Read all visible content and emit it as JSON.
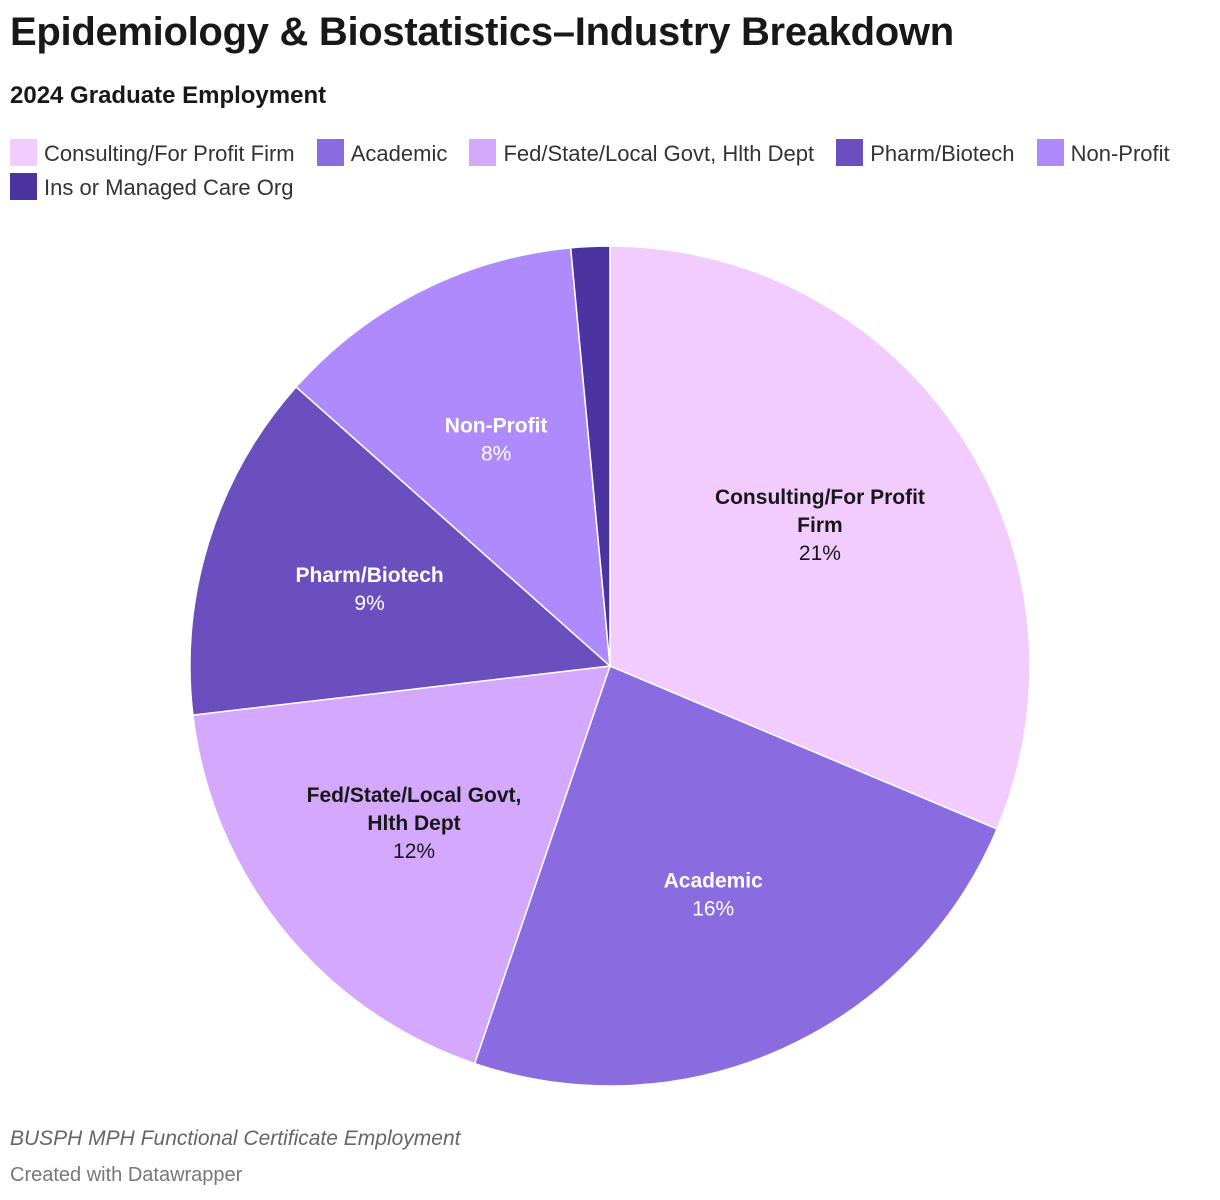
{
  "header": {
    "title": "Epidemiology & Biostatistics–Industry Breakdown",
    "subtitle": "2024 Graduate Employment"
  },
  "footer": {
    "source": "BUSPH MPH Functional Certificate Employment",
    "credit": "Created with Datawrapper"
  },
  "chart_data": {
    "type": "pie",
    "title": "Epidemiology & Biostatistics–Industry Breakdown",
    "subtitle": "2024 Graduate Employment",
    "legend_position": "top",
    "start_angle_deg": 0,
    "direction": "clockwise",
    "slices": [
      {
        "label": "Consulting/For Profit Firm",
        "value": 21,
        "value_label": "21%",
        "color": "#f2ccfe",
        "label_color": "#181818",
        "label_lines": [
          "Consulting/For Profit",
          "Firm"
        ]
      },
      {
        "label": "Academic",
        "value": 16,
        "value_label": "16%",
        "color": "#8b6be0",
        "label_color": "#ffffff",
        "label_lines": [
          "Academic"
        ]
      },
      {
        "label": "Fed/State/Local Govt, Hlth Dept",
        "value": 12,
        "value_label": "12%",
        "color": "#d3a8fd",
        "label_color": "#181818",
        "label_lines": [
          "Fed/State/Local Govt,",
          "Hlth Dept"
        ]
      },
      {
        "label": "Pharm/Biotech",
        "value": 9,
        "value_label": "9%",
        "color": "#6b4fbe",
        "label_color": "#ffffff",
        "label_lines": [
          "Pharm/Biotech"
        ]
      },
      {
        "label": "Non-Profit",
        "value": 8,
        "value_label": "8%",
        "color": "#ae8afd",
        "label_color": "#ffffff",
        "label_lines": [
          "Non-Profit"
        ]
      },
      {
        "label": "Ins or Managed Care Org",
        "value": 1,
        "value_label": "",
        "color": "#4b33a0",
        "label_color": "#ffffff",
        "label_lines": []
      }
    ]
  }
}
